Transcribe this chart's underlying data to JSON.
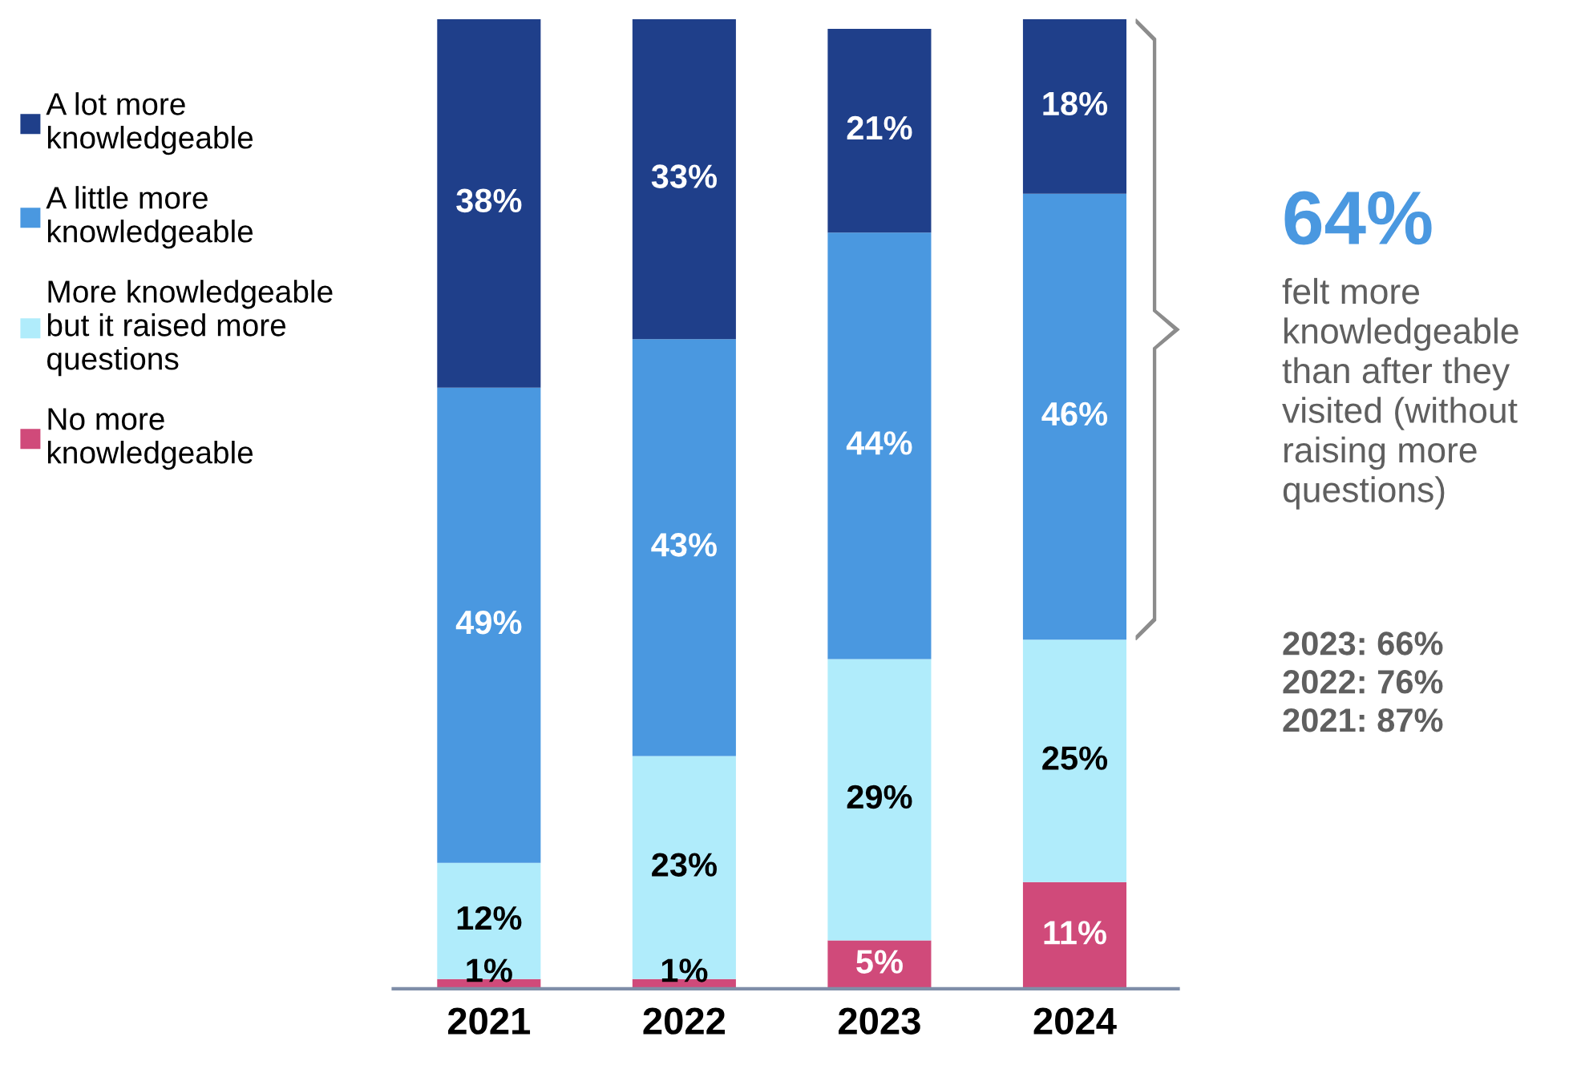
{
  "chart_data": {
    "type": "bar",
    "stacked": true,
    "legend": "left",
    "categories": [
      "2021",
      "2022",
      "2023",
      "2024"
    ],
    "series": [
      {
        "name": "No more\nknowledgeable",
        "color": "#d04a7a",
        "values": [
          1,
          1,
          5,
          11
        ],
        "value_labels": [
          "1%",
          "1%",
          "5%",
          "11%"
        ]
      },
      {
        "name": "More knowledgeable\nbut it raised more\nquestions",
        "color": "#b0ecfb",
        "values": [
          12,
          23,
          29,
          25
        ],
        "value_labels": [
          "12%",
          "23%",
          "29%",
          "25%"
        ]
      },
      {
        "name": "A little more\nknowledgeable",
        "color": "#4a98e0",
        "values": [
          49,
          43,
          44,
          46
        ],
        "value_labels": [
          "49%",
          "43%",
          "44%",
          "46%"
        ]
      },
      {
        "name": "A lot more\nknowledgeable",
        "color": "#1f3f8a",
        "values": [
          38,
          33,
          21,
          18
        ],
        "value_labels": [
          "38%",
          "33%",
          "21%",
          "18%"
        ]
      }
    ],
    "annotations": [
      "64%",
      "felt more\nknowledgeable\nthan after they\nvisited (without\nraising more\nquestions)",
      "2023: 66%\n2022: 76%\n2021: 87%"
    ]
  }
}
